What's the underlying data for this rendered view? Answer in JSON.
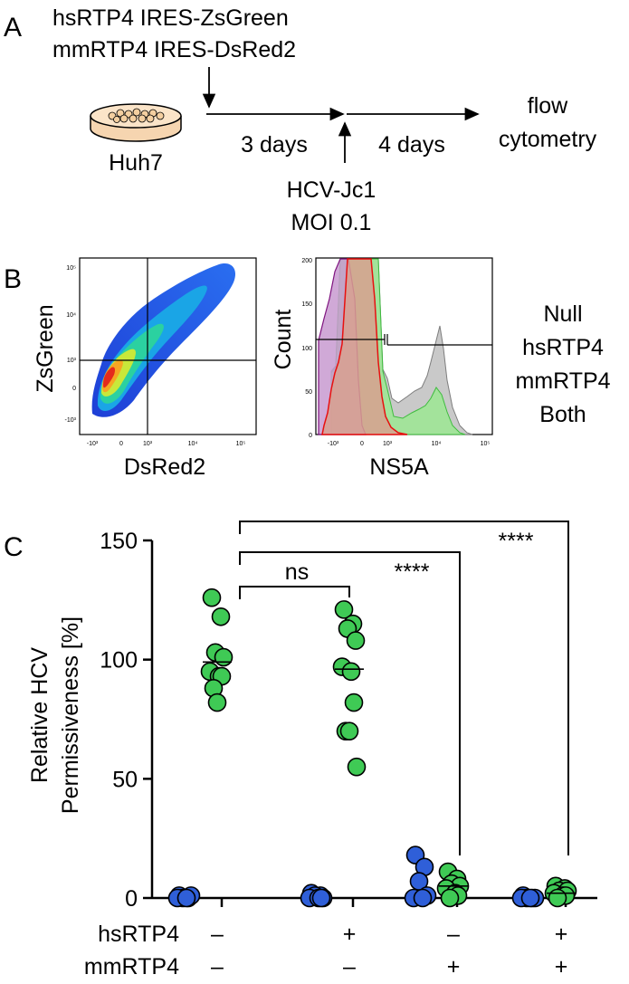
{
  "panel_a": {
    "label": "A",
    "construct_1": "hsRTP4 IRES-ZsGreen",
    "construct_2": "mmRTP4 IRES-DsRed2",
    "cell_line": "Huh7",
    "step_1_duration": "3 days",
    "step_2_duration": "4 days",
    "virus": "HCV-Jc1",
    "moi": "MOI 0.1",
    "readout_line_1": "flow",
    "readout_line_2": "cytometry"
  },
  "panel_b": {
    "label": "B",
    "density_plot": {
      "xlabel": "DsRed2",
      "ylabel": "ZsGreen",
      "x_ticks": [
        "-10³",
        "0",
        "10³",
        "10⁴",
        "10⁵"
      ],
      "y_ticks": [
        "10⁵",
        "10⁴",
        "10³",
        "0",
        "-10³"
      ]
    },
    "histogram": {
      "xlabel": "NS5A",
      "ylabel": "Count",
      "x_ticks": [
        "-10³",
        "0",
        "10³",
        "10⁴",
        "10⁵"
      ],
      "y_ticks": [
        "200",
        "150",
        "100",
        "50",
        "0"
      ],
      "legend": [
        {
          "label": "Null",
          "color": "#8c8c8c"
        },
        {
          "label": "hsRTP4",
          "color": "#4cd14c"
        },
        {
          "label": "mmRTP4",
          "color": "#ee1111"
        },
        {
          "label": "Both",
          "color": "#7f137f"
        }
      ]
    }
  },
  "panel_c": {
    "label": "C"
  },
  "chart_data": {
    "type": "scatter",
    "ylabel_line1": "Relative HCV",
    "ylabel_line2": "Permissiveness [%]",
    "ylim": [
      0,
      150
    ],
    "yticks": [
      "0",
      "50",
      "100",
      "150"
    ],
    "groups": [
      {
        "hsRTP4": "–",
        "mmRTP4": "–"
      },
      {
        "hsRTP4": "+",
        "mmRTP4": "–"
      },
      {
        "hsRTP4": "–",
        "mmRTP4": "+"
      },
      {
        "hsRTP4": "+",
        "mmRTP4": "+"
      }
    ],
    "row_labels": [
      "hsRTP4",
      "mmRTP4"
    ],
    "series": [
      {
        "color": "#2f5fd8",
        "points": [
          [
            0,
            1
          ],
          [
            0,
            0
          ],
          [
            0,
            0
          ],
          [
            0,
            1
          ],
          [
            0,
            0
          ],
          [
            0,
            0
          ],
          [
            1,
            2
          ],
          [
            1,
            1
          ],
          [
            1,
            1
          ],
          [
            1,
            0
          ],
          [
            1,
            0
          ],
          [
            1,
            0
          ],
          [
            1,
            0
          ],
          [
            2,
            18
          ],
          [
            2,
            13
          ],
          [
            2,
            7
          ],
          [
            2,
            1
          ],
          [
            2,
            0
          ],
          [
            2,
            0
          ],
          [
            3,
            1
          ],
          [
            3,
            0
          ],
          [
            3,
            0
          ],
          [
            3,
            0
          ],
          [
            3,
            0
          ],
          [
            3,
            0
          ]
        ]
      },
      {
        "color": "#3fca55",
        "points": [
          [
            0,
            126
          ],
          [
            0,
            118
          ],
          [
            0,
            103
          ],
          [
            0,
            101
          ],
          [
            0,
            95
          ],
          [
            0,
            93
          ],
          [
            0,
            93
          ],
          [
            0,
            88
          ],
          [
            0,
            82
          ],
          [
            1,
            121
          ],
          [
            1,
            115
          ],
          [
            1,
            113
          ],
          [
            1,
            108
          ],
          [
            1,
            97
          ],
          [
            1,
            95
          ],
          [
            1,
            82
          ],
          [
            1,
            70
          ],
          [
            1,
            70
          ],
          [
            1,
            55
          ],
          [
            2,
            11
          ],
          [
            2,
            8
          ],
          [
            2,
            6
          ],
          [
            2,
            5
          ],
          [
            2,
            4
          ],
          [
            2,
            2
          ],
          [
            2,
            1
          ],
          [
            2,
            0
          ],
          [
            3,
            5
          ],
          [
            3,
            4
          ],
          [
            3,
            3
          ],
          [
            3,
            3
          ],
          [
            3,
            2
          ],
          [
            3,
            1
          ],
          [
            3,
            1
          ],
          [
            3,
            0
          ]
        ]
      }
    ],
    "means": [
      99,
      96,
      5,
      2
    ],
    "significance": [
      {
        "label": "ns",
        "from": 0,
        "to": 1
      },
      {
        "label": "****",
        "from": 0,
        "to": 2
      },
      {
        "label": "****",
        "from": 0,
        "to": 3
      }
    ]
  }
}
